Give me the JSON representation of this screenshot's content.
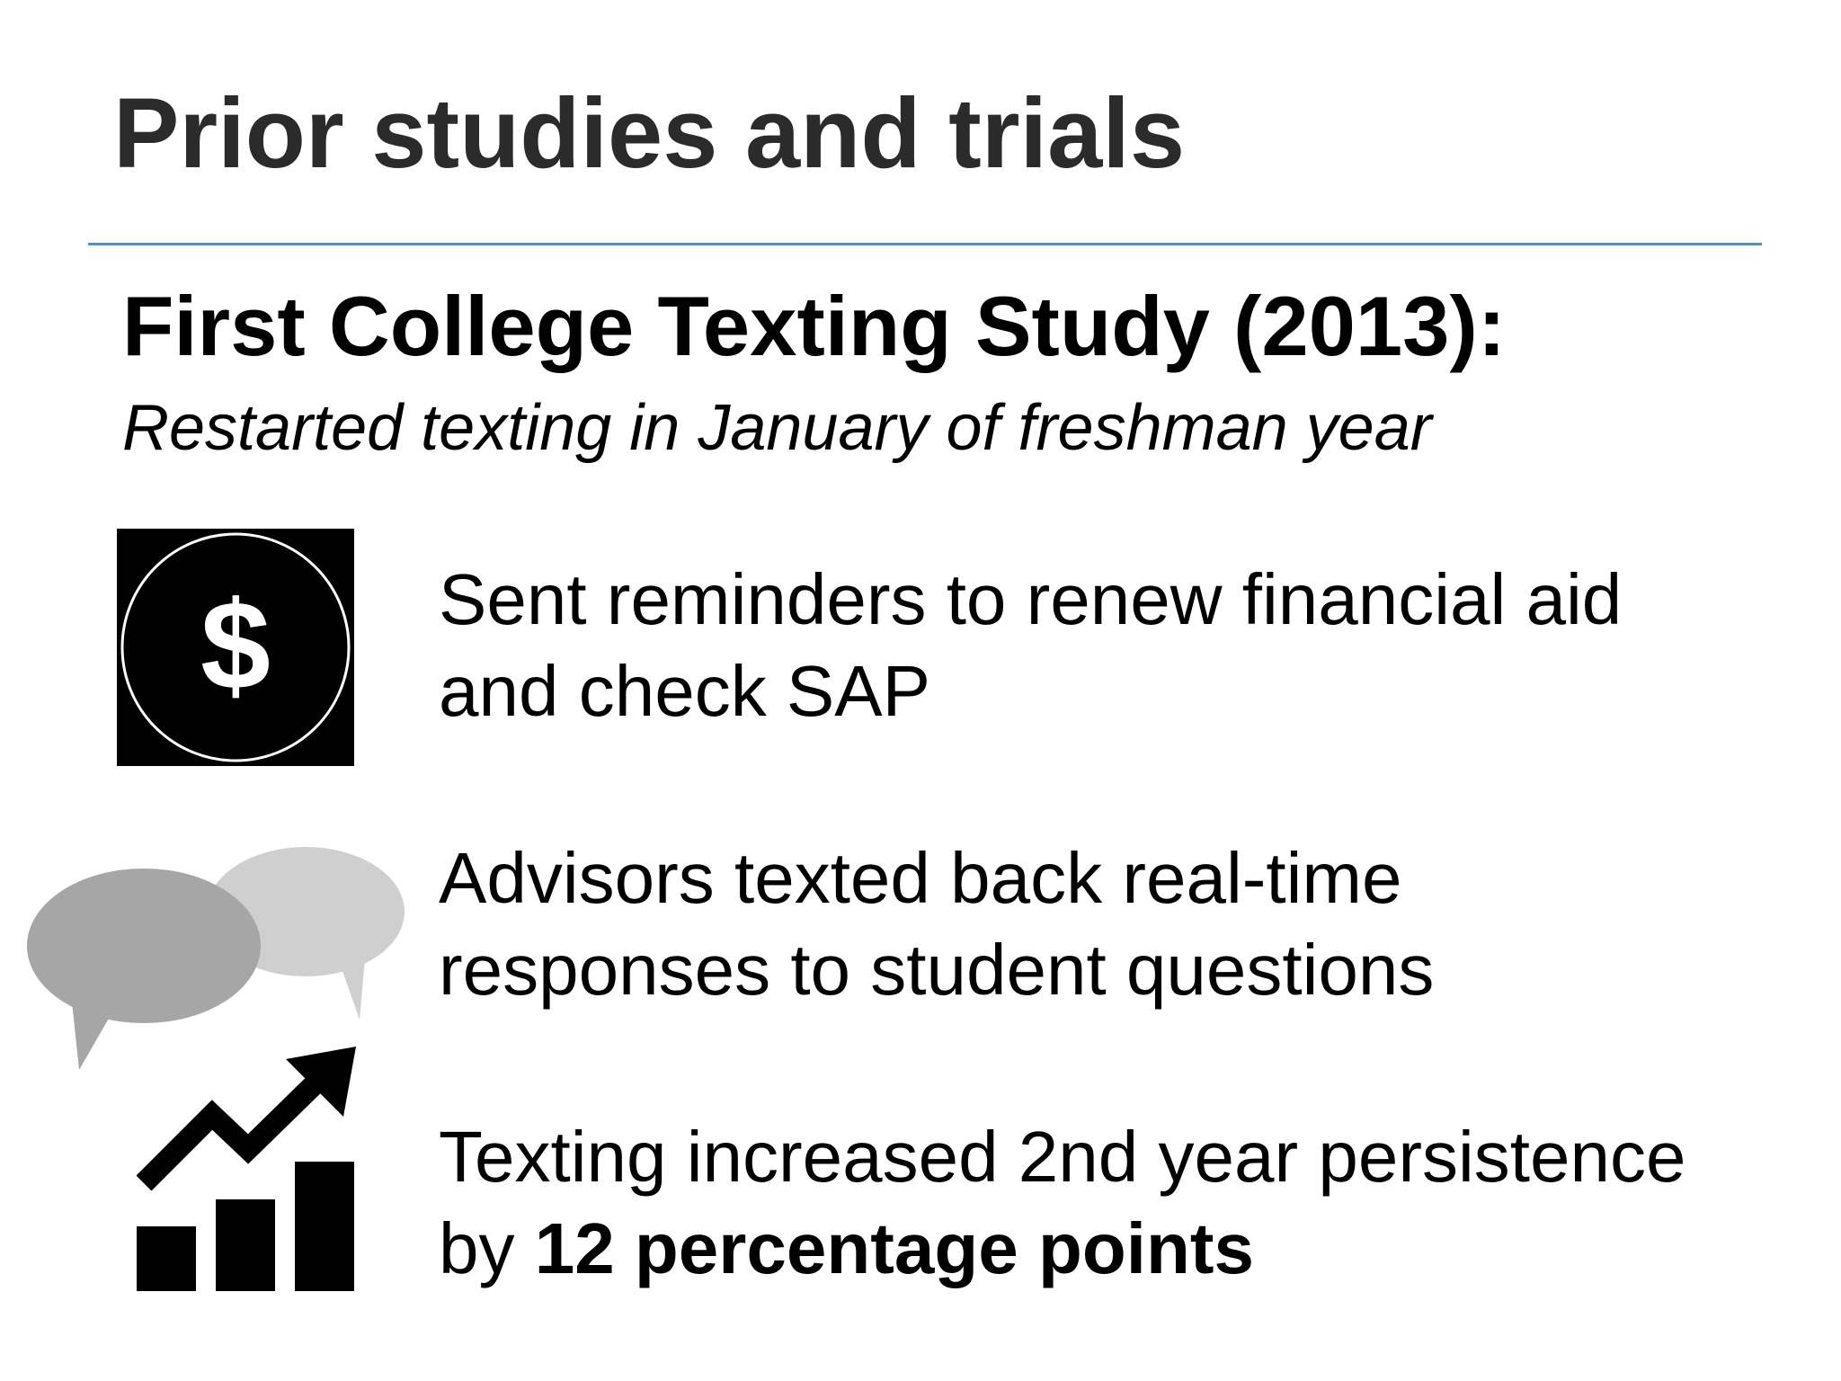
{
  "slide": {
    "title": "Prior studies and trials",
    "study_heading": "First College Texting Study (2013):",
    "study_subtitle": "Restarted texting in January of freshman year"
  },
  "points": [
    {
      "icon": "dollar-circle-icon",
      "line1": "Sent reminders to renew financial aid",
      "line2": "and check SAP"
    },
    {
      "icon": "speech-bubbles-icon",
      "line1": "Advisors texted back real-time",
      "line2": "responses to student questions"
    },
    {
      "icon": "growth-chart-icon",
      "line1": "Texting increased 2nd year persistence",
      "line2_prefix": "by ",
      "line2_emphasis": "12 percentage points"
    }
  ],
  "colors": {
    "title_text": "#2b2b2b",
    "rule": "#5b8fb0",
    "body_text": "#000000",
    "bubble_dark": "#a6a6a6",
    "bubble_light": "#cfcfcf"
  }
}
